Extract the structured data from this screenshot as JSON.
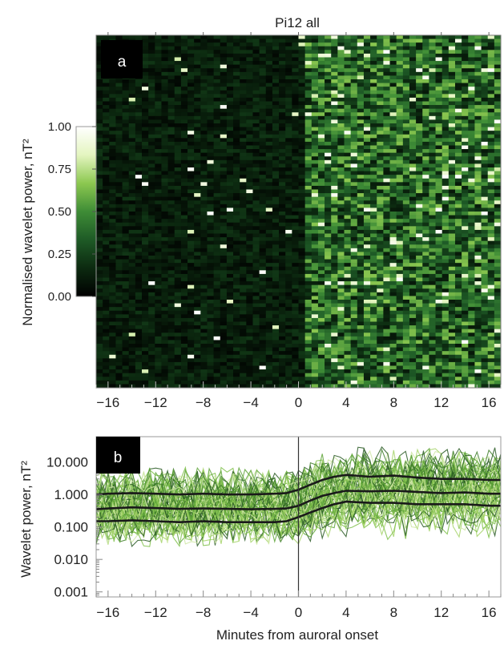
{
  "chart_data": [
    {
      "type": "heatmap",
      "panel_label": "a",
      "title": "Pi12 all",
      "xlabel": "",
      "ylabel": "Normalised wavelet power, nT²",
      "x_ticks": [
        -16,
        -12,
        -8,
        -4,
        0,
        4,
        8,
        12,
        16
      ],
      "x_tick_labels": [
        "−16",
        "−12",
        "−8",
        "−4",
        "0",
        "4",
        "8",
        "12",
        "16"
      ],
      "xlim": [
        -17,
        17
      ],
      "n_rows": 96,
      "n_cols": 62,
      "colorbar": {
        "ticks": [
          0.0,
          0.25,
          0.5,
          0.75,
          1.0
        ],
        "tick_labels": [
          "0.00",
          "0.25",
          "0.50",
          "0.75",
          "1.00"
        ],
        "colors": [
          "#000000",
          "#0c2a10",
          "#1e5a26",
          "#3e8c36",
          "#8cc850",
          "#e4f5c0",
          "#ffffff"
        ]
      },
      "mean_power_before_onset": 0.12,
      "mean_power_after_onset": 0.38
    },
    {
      "type": "line",
      "panel_label": "b",
      "xlabel": "Minutes from auroral onset",
      "ylabel": "Wavelet power, nT²",
      "y_scale": "log",
      "ylim": [
        0.0007,
        60
      ],
      "xlim": [
        -17,
        17
      ],
      "x_ticks": [
        -16,
        -12,
        -8,
        -4,
        0,
        4,
        8,
        12,
        16
      ],
      "x_tick_labels": [
        "−16",
        "−12",
        "−8",
        "−4",
        "0",
        "4",
        "8",
        "12",
        "16"
      ],
      "y_ticks": [
        0.001,
        0.01,
        0.1,
        1,
        10
      ],
      "y_tick_labels": [
        "0.001",
        "0.010",
        "0.100",
        "1.000",
        "10.000"
      ],
      "onset_line_x": 0,
      "n_individual_traces": 70,
      "individual_trace_colors": [
        "#cfe8a4",
        "#a6d36a",
        "#7fbf4a",
        "#5fa43a",
        "#3f7f2a",
        "#2a5a24"
      ],
      "summary_curves": {
        "x": [
          -17,
          -16,
          -14,
          -12,
          -10,
          -8,
          -6,
          -4,
          -2,
          -1,
          0,
          1,
          2,
          3,
          4,
          6,
          8,
          10,
          12,
          14,
          16,
          17
        ],
        "upper_quartile": [
          1.0,
          1.05,
          1.1,
          1.05,
          1.0,
          1.05,
          1.0,
          1.0,
          1.05,
          1.1,
          1.4,
          2.0,
          2.8,
          3.5,
          4.0,
          3.5,
          3.8,
          3.3,
          3.0,
          3.0,
          2.8,
          2.8
        ],
        "median": [
          0.35,
          0.37,
          0.4,
          0.38,
          0.36,
          0.37,
          0.36,
          0.35,
          0.36,
          0.37,
          0.45,
          0.65,
          0.9,
          1.1,
          1.3,
          1.25,
          1.3,
          1.2,
          1.1,
          1.15,
          1.05,
          1.05
        ],
        "lower_quartile": [
          0.15,
          0.15,
          0.16,
          0.15,
          0.14,
          0.15,
          0.14,
          0.14,
          0.14,
          0.15,
          0.2,
          0.28,
          0.38,
          0.5,
          0.6,
          0.55,
          0.55,
          0.5,
          0.5,
          0.5,
          0.45,
          0.45
        ],
        "color": "#1a1a1a"
      }
    }
  ]
}
